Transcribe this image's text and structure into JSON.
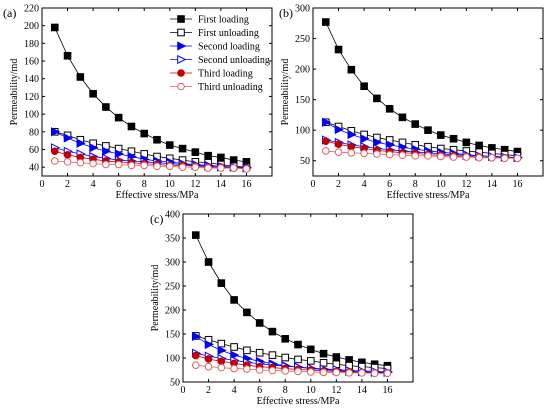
{
  "chart_data": [
    {
      "panel": "(a)",
      "type": "line",
      "xlabel": "Effective stress/MPa",
      "ylabel": "Permeability/md",
      "xlim": [
        0,
        18
      ],
      "ylim": [
        30,
        220
      ],
      "xticks": [
        0,
        2,
        4,
        6,
        8,
        10,
        12,
        14,
        16
      ],
      "yticks": [
        40,
        60,
        80,
        100,
        120,
        140,
        160,
        180,
        200,
        220
      ],
      "x": [
        1,
        2,
        3,
        4,
        5,
        6,
        7,
        8,
        9,
        10,
        11,
        12,
        13,
        14,
        15,
        16
      ],
      "legend": {
        "position": "top-right"
      },
      "series": [
        {
          "name": "First loading",
          "color": "#000000",
          "marker": "square-filled",
          "values": [
            198,
            166,
            142,
            123,
            108,
            96,
            86,
            78,
            71,
            65,
            61,
            57,
            53,
            51,
            48,
            46
          ]
        },
        {
          "name": "First unloading",
          "color": "#000000",
          "marker": "square-open",
          "values": [
            80,
            76,
            71,
            67,
            64,
            61,
            58,
            55,
            52,
            50,
            48,
            46,
            45,
            43,
            41,
            40
          ]
        },
        {
          "name": "Second loading",
          "color": "#0000ff",
          "marker": "triangle-right-filled",
          "values": [
            80,
            73,
            67,
            62,
            58,
            55,
            52,
            49,
            47,
            46,
            44,
            43,
            42,
            41,
            40,
            40
          ]
        },
        {
          "name": "Second unloading",
          "color": "#0000ff",
          "marker": "triangle-right-open",
          "values": [
            62,
            58,
            55,
            52,
            50,
            48,
            47,
            46,
            45,
            44,
            43,
            42,
            41,
            40,
            40,
            39
          ]
        },
        {
          "name": "Third loading",
          "color": "#c00000",
          "marker": "circle-filled",
          "values": [
            58,
            54,
            51,
            49,
            47,
            46,
            45,
            44,
            43,
            42,
            42,
            41,
            40,
            40,
            39,
            39
          ]
        },
        {
          "name": "Third unloading",
          "color": "#e06060",
          "marker": "circle-open",
          "values": [
            47,
            46,
            45,
            44,
            43,
            43,
            42,
            42,
            41,
            41,
            40,
            40,
            39,
            39,
            39,
            38
          ]
        }
      ]
    },
    {
      "panel": "(b)",
      "type": "line",
      "xlabel": "Effective stress/MPa",
      "ylabel": "Permeability/md",
      "xlim": [
        0,
        18
      ],
      "ylim": [
        25,
        300
      ],
      "xticks": [
        0,
        2,
        4,
        6,
        8,
        10,
        12,
        14,
        16
      ],
      "yticks": [
        50,
        100,
        150,
        200,
        250,
        300
      ],
      "x": [
        1,
        2,
        3,
        4,
        5,
        6,
        7,
        8,
        9,
        10,
        11,
        12,
        13,
        14,
        15,
        16
      ],
      "series": [
        {
          "name": "First loading",
          "color": "#000000",
          "marker": "square-filled",
          "values": [
            277,
            232,
            199,
            172,
            152,
            135,
            121,
            110,
            100,
            92,
            86,
            80,
            75,
            71,
            68,
            65
          ]
        },
        {
          "name": "First unloading",
          "color": "#000000",
          "marker": "square-open",
          "values": [
            113,
            106,
            99,
            93,
            88,
            84,
            80,
            76,
            73,
            70,
            68,
            66,
            64,
            62,
            60,
            58
          ]
        },
        {
          "name": "Second loading",
          "color": "#0000ff",
          "marker": "triangle-right-filled",
          "values": [
            113,
            101,
            93,
            86,
            80,
            76,
            72,
            69,
            66,
            64,
            62,
            60,
            58,
            57,
            56,
            55
          ]
        },
        {
          "name": "Second unloading",
          "color": "#0000ff",
          "marker": "triangle-right-open",
          "values": [
            84,
            80,
            76,
            73,
            70,
            68,
            66,
            64,
            63,
            61,
            60,
            59,
            58,
            57,
            56,
            55
          ]
        },
        {
          "name": "Third loading",
          "color": "#c00000",
          "marker": "circle-filled",
          "values": [
            82,
            77,
            73,
            70,
            67,
            65,
            63,
            62,
            60,
            59,
            58,
            57,
            56,
            55,
            55,
            54
          ]
        },
        {
          "name": "Third unloading",
          "color": "#e06060",
          "marker": "circle-open",
          "values": [
            66,
            64,
            63,
            62,
            61,
            60,
            59,
            58,
            58,
            57,
            56,
            56,
            55,
            55,
            54,
            54
          ]
        }
      ]
    },
    {
      "panel": "(c)",
      "type": "line",
      "xlabel": "Effective stress/MPa",
      "ylabel": "Permeability/md",
      "xlim": [
        0,
        18
      ],
      "ylim": [
        50,
        400
      ],
      "xticks": [
        0,
        2,
        4,
        6,
        8,
        10,
        12,
        14,
        16
      ],
      "yticks": [
        50,
        100,
        150,
        200,
        250,
        300,
        350,
        400
      ],
      "x": [
        1,
        2,
        3,
        4,
        5,
        6,
        7,
        8,
        9,
        10,
        11,
        12,
        13,
        14,
        15,
        16
      ],
      "series": [
        {
          "name": "First loading",
          "color": "#000000",
          "marker": "square-filled",
          "values": [
            356,
            300,
            256,
            221,
            195,
            173,
            155,
            140,
            128,
            118,
            109,
            102,
            96,
            91,
            87,
            84
          ]
        },
        {
          "name": "First unloading",
          "color": "#000000",
          "marker": "square-open",
          "values": [
            146,
            138,
            130,
            123,
            116,
            111,
            106,
            101,
            97,
            94,
            90,
            87,
            84,
            82,
            80,
            78
          ]
        },
        {
          "name": "Second loading",
          "color": "#0000ff",
          "marker": "triangle-right-filled",
          "values": [
            145,
            128,
            116,
            106,
            99,
            93,
            88,
            84,
            81,
            78,
            76,
            74,
            72,
            71,
            70,
            70
          ]
        },
        {
          "name": "Second unloading",
          "color": "#0000ff",
          "marker": "triangle-right-open",
          "values": [
            110,
            104,
            99,
            95,
            91,
            88,
            85,
            83,
            81,
            79,
            77,
            76,
            74,
            73,
            72,
            71
          ]
        },
        {
          "name": "Third loading",
          "color": "#c00000",
          "marker": "circle-filled",
          "values": [
            105,
            98,
            93,
            89,
            85,
            82,
            80,
            78,
            76,
            75,
            73,
            72,
            71,
            70,
            69,
            69
          ]
        },
        {
          "name": "Third unloading",
          "color": "#e06060",
          "marker": "circle-open",
          "values": [
            85,
            82,
            80,
            78,
            77,
            75,
            74,
            73,
            72,
            71,
            70,
            70,
            69,
            69,
            68,
            68
          ]
        }
      ]
    }
  ]
}
